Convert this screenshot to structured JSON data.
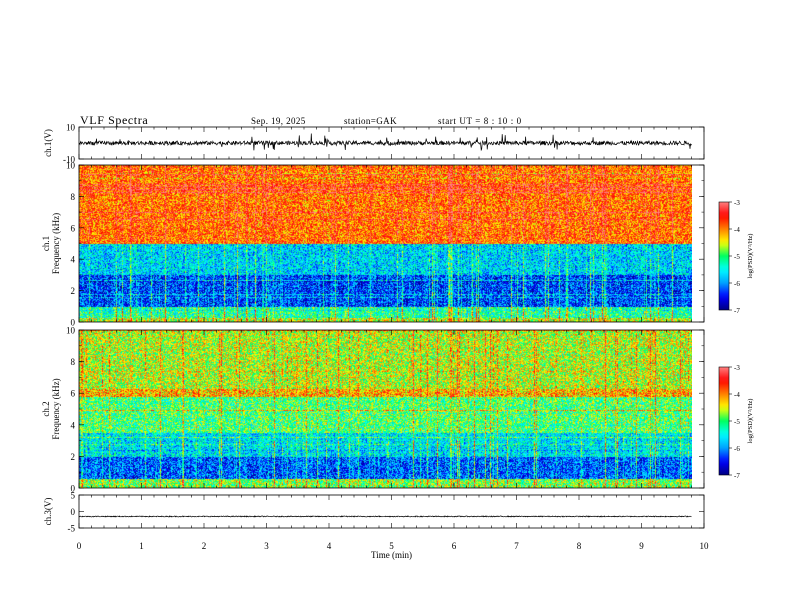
{
  "chart_data": [
    {
      "type": "line",
      "name": "ch1_waveform",
      "title": "VLF Spectra",
      "ylabel": "ch.1(V)",
      "ylim": [
        -10,
        10
      ],
      "yticks": [
        10,
        -10
      ],
      "mean": 0,
      "spread": 2.5
    },
    {
      "type": "heatmap",
      "name": "ch1_spectrogram",
      "ylabel": "Frequency (kHz)",
      "channel": "ch.1",
      "ylim": [
        0,
        10
      ],
      "yticks": [
        0,
        2,
        4,
        6,
        8,
        10
      ],
      "colorbar": {
        "label": "log(PSD)(V²/Hz)",
        "range": [
          -7,
          -3
        ],
        "ticks": [
          -3,
          -4,
          -5,
          -6,
          -7
        ]
      },
      "band_levels_kHz": [
        {
          "below": 0.3,
          "level": -4.6
        },
        {
          "below": 1.0,
          "level": -5.2
        },
        {
          "below": 3.0,
          "level": -6.3
        },
        {
          "below": 5.0,
          "level": -5.7
        },
        {
          "below": 10.0,
          "level": -3.9
        }
      ]
    },
    {
      "type": "heatmap",
      "name": "ch2_spectrogram",
      "ylabel": "Frequency (kHz)",
      "channel": "ch.2",
      "ylim": [
        0,
        10
      ],
      "yticks": [
        0,
        2,
        4,
        6,
        8,
        10
      ],
      "colorbar": {
        "label": "log(PSD)(V²/Hz)",
        "range": [
          -7,
          -3
        ],
        "ticks": [
          -3,
          -4,
          -5,
          -6,
          -7
        ]
      },
      "band_levels_kHz": [
        {
          "below": 0.6,
          "level": -4.8
        },
        {
          "below": 2.0,
          "level": -6.2
        },
        {
          "below": 3.5,
          "level": -5.6
        },
        {
          "below": 5.8,
          "level": -5.0
        },
        {
          "below": 6.3,
          "level": -4.2
        },
        {
          "below": 10.0,
          "level": -4.6
        }
      ]
    },
    {
      "type": "line",
      "name": "ch3_waveform",
      "ylabel": "ch.3(V)",
      "ylim": [
        -5,
        5
      ],
      "yticks": [
        5,
        0,
        -5
      ],
      "mean": -1.5,
      "spread": 0.3
    }
  ],
  "x_axis": {
    "label": "Time (min)",
    "range": [
      0,
      10
    ],
    "ticks": [
      0,
      1,
      2,
      3,
      4,
      5,
      6,
      7,
      8,
      9,
      10
    ],
    "data_end": 9.8
  },
  "header": {
    "title": "VLF Spectra",
    "date": "Sep. 19, 2025",
    "station": "station=GAK",
    "start": "start UT =  8 : 10 : 0"
  },
  "colors": {
    "scale": [
      "#000080",
      "#0000ff",
      "#00a0ff",
      "#00ffff",
      "#00ff60",
      "#ffff00",
      "#ff8000",
      "#ff0000",
      "#ff8080"
    ]
  }
}
